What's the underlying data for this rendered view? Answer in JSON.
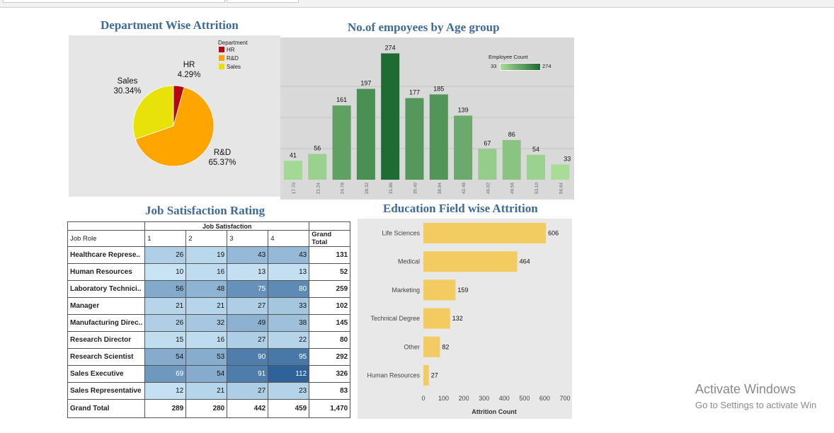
{
  "titles": {
    "department": "Department Wise Attrition",
    "age": "No.of empoyees by Age group",
    "job": "Job Satisfaction Rating",
    "education": "Education Field wise Attrition"
  },
  "watermark": {
    "line1": "Activate Windows",
    "line2": "Go to Settings to activate Win"
  },
  "chart_data": [
    {
      "type": "pie",
      "title": "Department Wise Attrition",
      "legend_title": "Department",
      "legend_position": "top-right",
      "slices": [
        {
          "name": "HR",
          "value": 4.29,
          "label": "HR\n4.29%",
          "color": "#b5070f"
        },
        {
          "name": "R&D",
          "value": 65.37,
          "label": "R&D\n65.37%",
          "color": "#ffa500"
        },
        {
          "name": "Sales",
          "value": 30.34,
          "label": "Sales\n30.34%",
          "color": "#e8e20a"
        }
      ]
    },
    {
      "type": "bar",
      "title": "No.of empoyees by Age group",
      "categories": [
        "17.70",
        "21.24",
        "24.78",
        "28.32",
        "31.86",
        "35.40",
        "38.94",
        "42.48",
        "46.02",
        "49.56",
        "53.10",
        "56.64"
      ],
      "values": [
        41,
        56,
        161,
        197,
        274,
        177,
        185,
        139,
        67,
        86,
        54,
        33
      ],
      "ylim": [
        0,
        290
      ],
      "grid": true,
      "legend": {
        "title": "Employee Count",
        "min": "33",
        "max": "274",
        "position": "top-right",
        "color_low": "#a8dc98",
        "color_high": "#1e6b34"
      }
    },
    {
      "type": "table",
      "title": "Job Satisfaction Rating",
      "column_group": "Job Satisfaction",
      "row_header": "Job Role",
      "columns": [
        "1",
        "2",
        "3",
        "4",
        "Grand Total"
      ],
      "rows": [
        {
          "role": "Healthcare Represe..",
          "values": [
            26,
            19,
            43,
            43
          ],
          "total": "131"
        },
        {
          "role": "Human Resources",
          "values": [
            10,
            16,
            13,
            13
          ],
          "total": "52"
        },
        {
          "role": "Laboratory Technici..",
          "values": [
            56,
            48,
            75,
            80
          ],
          "total": "259"
        },
        {
          "role": "Manager",
          "values": [
            21,
            21,
            27,
            33
          ],
          "total": "102"
        },
        {
          "role": "Manufacturing Direc..",
          "values": [
            26,
            32,
            49,
            38
          ],
          "total": "145"
        },
        {
          "role": "Research Director",
          "values": [
            15,
            16,
            27,
            22
          ],
          "total": "80"
        },
        {
          "role": "Research Scientist",
          "values": [
            54,
            53,
            90,
            95
          ],
          "total": "292"
        },
        {
          "role": "Sales Executive",
          "values": [
            69,
            54,
            91,
            112
          ],
          "total": "326"
        },
        {
          "role": "Sales Representative",
          "values": [
            12,
            21,
            27,
            23
          ],
          "total": "83"
        }
      ],
      "grand_total": {
        "label": "Grand Total",
        "values": [
          "289",
          "280",
          "442",
          "459"
        ],
        "total": "1,470"
      },
      "color_low": "#c8e3f4",
      "color_high": "#2e6299"
    },
    {
      "type": "bar",
      "orientation": "horizontal",
      "title": "Education Field wise Attrition",
      "categories": [
        "Life Sciences",
        "Medical",
        "Marketing",
        "Technical Degree",
        "Other",
        "Human Resources"
      ],
      "values": [
        606,
        464,
        159,
        132,
        82,
        27
      ],
      "xlabel": "Attrition Count",
      "xlim": [
        0,
        700
      ],
      "xticks": [
        "0",
        "100",
        "200",
        "300",
        "400",
        "500",
        "600",
        "700"
      ],
      "color": "#f2cc60"
    }
  ]
}
